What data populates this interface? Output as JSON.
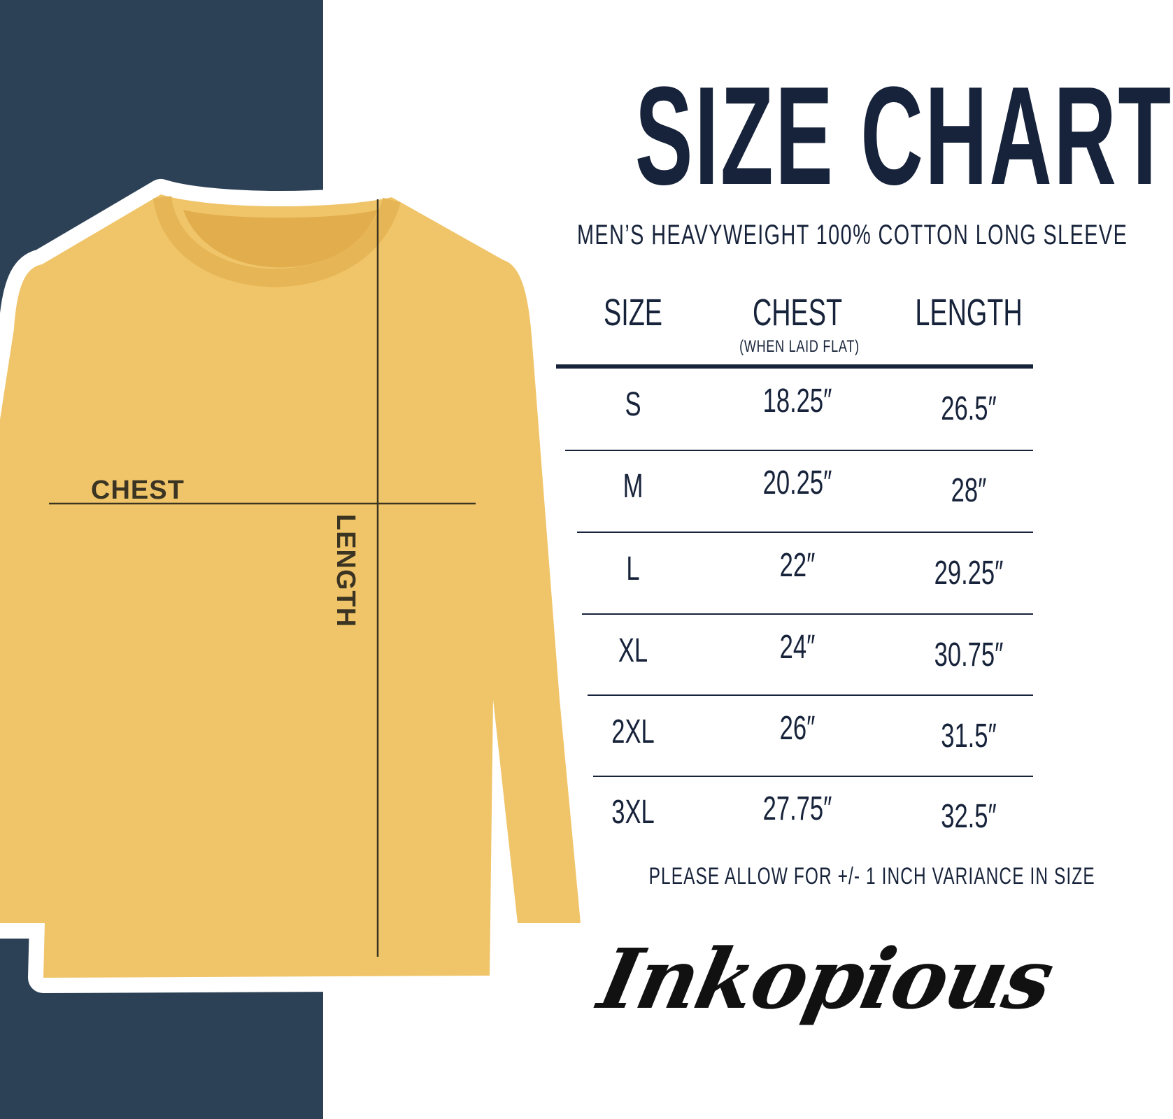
{
  "title": "SIZE CHART",
  "subtitle": "MEN’S HEAVYWEIGHT 100% COTTON LONG SLEEVE",
  "diagram": {
    "chest_label": "CHEST",
    "length_label": "LENGTH"
  },
  "table": {
    "headers": {
      "size": "SIZE",
      "chest": "CHEST",
      "chest_note": "(WHEN LAID FLAT)",
      "length": "LENGTH"
    },
    "rows": [
      {
        "size": "S",
        "chest": "18.25″",
        "length": "26.5″"
      },
      {
        "size": "M",
        "chest": "20.25″",
        "length": "28″"
      },
      {
        "size": "L",
        "chest": "22″",
        "length": "29.25″"
      },
      {
        "size": "XL",
        "chest": "24″",
        "length": "30.75″"
      },
      {
        "size": "2XL",
        "chest": "26″",
        "length": "31.5″"
      },
      {
        "size": "3XL",
        "chest": "27.75″",
        "length": "32.5″"
      }
    ]
  },
  "note": "PLEASE ALLOW FOR +/- 1 INCH VARIANCE IN SIZE",
  "brand": "Inkopious",
  "colors": {
    "panel": "#2d4156",
    "shirt": "#f0c468",
    "text": "#17233a"
  }
}
